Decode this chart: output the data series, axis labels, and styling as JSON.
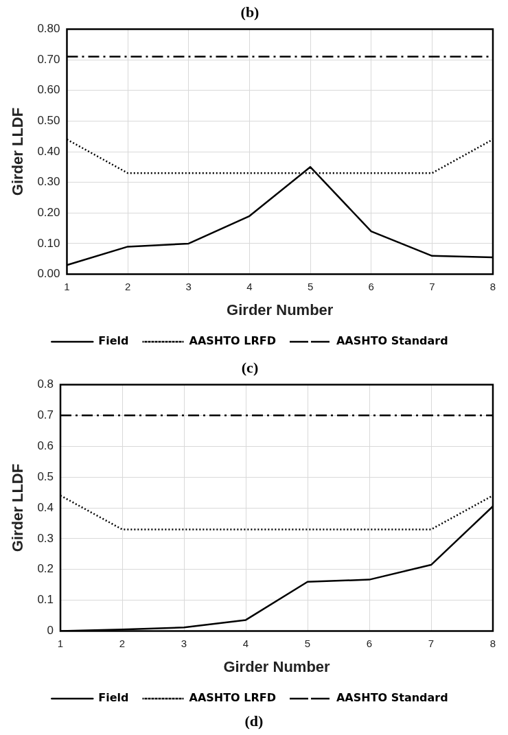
{
  "chart_data": [
    {
      "type": "line",
      "title": "(b)",
      "xlabel": "Girder Number",
      "ylabel": "Girder LLDF",
      "categories": [
        "1",
        "2",
        "3",
        "4",
        "5",
        "6",
        "7",
        "8"
      ],
      "series": [
        {
          "name": "Field",
          "color": "#000000",
          "line_style": "solid",
          "values": [
            0.03,
            0.09,
            0.1,
            0.19,
            0.35,
            0.14,
            0.06,
            0.055
          ]
        },
        {
          "name": "AASHTO LRFD",
          "color": "#000000",
          "line_style": "dotted",
          "values": [
            0.44,
            0.33,
            0.33,
            0.33,
            0.33,
            0.33,
            0.33,
            0.44
          ]
        },
        {
          "name": "AASHTO Standard",
          "color": "#000000",
          "line_style": "dashed",
          "values": [
            0.71,
            0.71,
            0.71,
            0.71,
            0.71,
            0.71,
            0.71,
            0.71
          ]
        }
      ],
      "ylim": [
        0,
        0.8
      ],
      "yticks": [
        {
          "value": 0,
          "label": "0.00"
        },
        {
          "value": 0.1,
          "label": "0.10"
        },
        {
          "value": 0.2,
          "label": "0.20"
        },
        {
          "value": 0.3,
          "label": "0.30"
        },
        {
          "value": 0.4,
          "label": "0.40"
        },
        {
          "value": 0.5,
          "label": "0.50"
        },
        {
          "value": 0.6,
          "label": "0.60"
        },
        {
          "value": 0.7,
          "label": "0.70"
        },
        {
          "value": 0.8,
          "label": "0.80"
        }
      ],
      "grid": true,
      "legend": "bottom",
      "marker": "none"
    },
    {
      "type": "line",
      "title": "(c)",
      "xlabel": "Girder Number",
      "ylabel": "Girder LLDF",
      "categories": [
        "1",
        "2",
        "3",
        "4",
        "5",
        "6",
        "7",
        "8"
      ],
      "series": [
        {
          "name": "Field",
          "color": "#000000",
          "line_style": "solid",
          "values": [
            0,
            0.005,
            0.012,
            0.036,
            0.16,
            0.167,
            0.215,
            0.405
          ]
        },
        {
          "name": "AASHTO LRFD",
          "color": "#000000",
          "line_style": "dotted",
          "values": [
            0.44,
            0.33,
            0.33,
            0.33,
            0.33,
            0.33,
            0.33,
            0.44
          ]
        },
        {
          "name": "AASHTO Standard",
          "color": "#000000",
          "line_style": "dashed",
          "values": [
            0.7,
            0.7,
            0.7,
            0.7,
            0.7,
            0.7,
            0.7,
            0.7
          ]
        }
      ],
      "ylim": [
        0,
        0.8
      ],
      "yticks": [
        0,
        0.1,
        0.2,
        0.3,
        0.4,
        0.5,
        0.6,
        0.7,
        0.8
      ],
      "annotations": [
        "(d)"
      ],
      "grid": true,
      "legend": "bottom",
      "marker": "none"
    }
  ]
}
